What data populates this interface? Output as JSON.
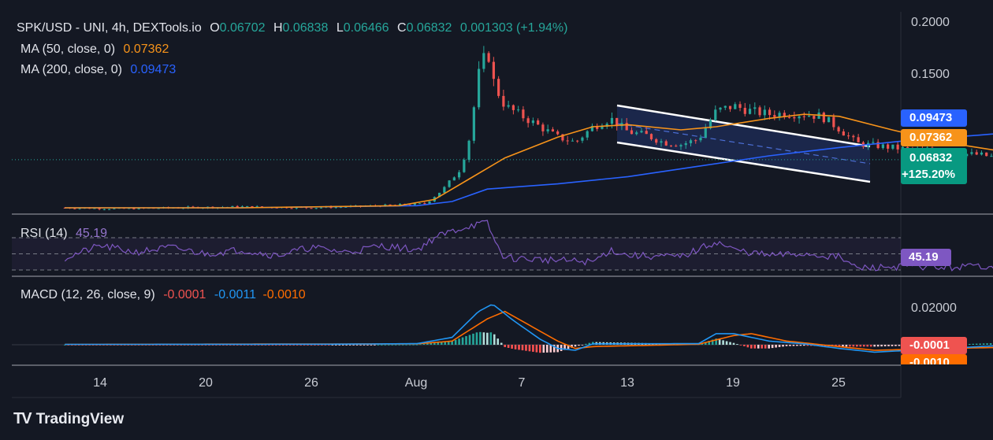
{
  "header": {
    "symbol": "SPK/USD - UNI, 4h, DEXTools.io",
    "open_label": "O",
    "open": "0.06702",
    "high_label": "H",
    "high": "0.06838",
    "low_label": "L",
    "low": "0.06466",
    "close_label": "C",
    "close": "0.06832",
    "change": "0.001303 (+1.94%)"
  },
  "indicators": {
    "ma50": {
      "label": "MA (50, close, 0)",
      "value": "0.07362",
      "color": "#f7931a"
    },
    "ma200": {
      "label": "MA (200, close, 0)",
      "value": "0.09473",
      "color": "#2962ff"
    },
    "rsi": {
      "label": "RSI (14)",
      "value": "45.19",
      "color": "#7e57c2"
    },
    "macd": {
      "label": "MACD (12, 26, close, 9)",
      "hist": "-0.0001",
      "macd": "-0.0011",
      "signal": "-0.0010"
    }
  },
  "price_axis": {
    "ticks": [
      "0.2000",
      "0.1500"
    ],
    "badges": {
      "ma200": "0.09473",
      "ma50": "0.07362",
      "price": "0.06832",
      "pct": "+125.20%"
    }
  },
  "rsi_axis": {
    "badge": "45.19"
  },
  "macd_axis": {
    "ticks": [
      "0.02000"
    ],
    "badge_hist": "-0.0001",
    "badge_signal": "-0.0010"
  },
  "time_axis": {
    "ticks": [
      "14",
      "20",
      "26",
      "Aug",
      "7",
      "13",
      "19",
      "25"
    ]
  },
  "brand": {
    "name": "TradingView",
    "logo_text": "TV"
  },
  "colors": {
    "up": "#26a69a",
    "down": "#ef5350",
    "ma50": "#f7931a",
    "ma200": "#2962ff",
    "rsi": "#7e57c2",
    "macd": "#2196f3",
    "signal": "#ff6d00",
    "channel": "#ffffff"
  },
  "chart_data": [
    {
      "type": "candlestick",
      "title": "SPK/USD - UNI, 4h, DEXTools.io",
      "ylim": [
        0.0,
        0.2
      ],
      "x_ticks": [
        "14",
        "20",
        "26",
        "Aug",
        "7",
        "13",
        "19",
        "25"
      ],
      "close_path": [
        [
          0,
          0.022
        ],
        [
          3,
          0.021
        ],
        [
          6,
          0.022
        ],
        [
          10,
          0.023
        ],
        [
          14,
          0.022
        ],
        [
          18,
          0.024
        ],
        [
          20.5,
          0.026
        ],
        [
          21.5,
          0.04
        ],
        [
          22.5,
          0.06
        ],
        [
          23,
          0.09
        ],
        [
          23.5,
          0.15
        ],
        [
          24,
          0.175
        ],
        [
          24.4,
          0.14
        ],
        [
          25,
          0.12
        ],
        [
          26,
          0.11
        ],
        [
          27,
          0.1
        ],
        [
          28,
          0.09
        ],
        [
          29,
          0.085
        ],
        [
          30,
          0.1
        ],
        [
          31,
          0.108
        ],
        [
          32,
          0.095
        ],
        [
          33,
          0.092
        ],
        [
          34,
          0.085
        ],
        [
          35,
          0.083
        ],
        [
          36,
          0.088
        ],
        [
          37,
          0.115
        ],
        [
          38,
          0.12
        ],
        [
          39,
          0.115
        ],
        [
          40,
          0.112
        ],
        [
          41,
          0.113
        ],
        [
          42,
          0.112
        ],
        [
          43,
          0.11
        ],
        [
          44,
          0.098
        ],
        [
          45,
          0.084
        ],
        [
          46,
          0.082
        ],
        [
          47,
          0.08
        ],
        [
          48,
          0.078
        ],
        [
          49,
          0.078
        ],
        [
          50,
          0.077
        ],
        [
          51,
          0.074
        ],
        [
          52,
          0.073
        ],
        [
          53,
          0.07
        ],
        [
          54,
          0.07
        ],
        [
          54.7,
          0.078
        ],
        [
          55,
          0.072
        ],
        [
          55.5,
          0.068
        ]
      ],
      "last": {
        "open": 0.06702,
        "high": 0.06838,
        "low": 0.06466,
        "close": 0.06832
      }
    },
    {
      "type": "line",
      "series": [
        {
          "name": "MA (50, close, 0)",
          "last": 0.07362,
          "points": [
            [
              0,
              0.022
            ],
            [
              10,
              0.022
            ],
            [
              19,
              0.024
            ],
            [
              21,
              0.03
            ],
            [
              23,
              0.05
            ],
            [
              25,
              0.07
            ],
            [
              28,
              0.09
            ],
            [
              30,
              0.1
            ],
            [
              32,
              0.102
            ],
            [
              35,
              0.097
            ],
            [
              37,
              0.1
            ],
            [
              40,
              0.108
            ],
            [
              42,
              0.112
            ],
            [
              44,
              0.11
            ],
            [
              47,
              0.097
            ],
            [
              50,
              0.085
            ],
            [
              53,
              0.077
            ],
            [
              55.5,
              0.074
            ]
          ]
        },
        {
          "name": "MA (200, close, 0)",
          "last": 0.09473,
          "points": [
            [
              0,
              0.022
            ],
            [
              10,
              0.022
            ],
            [
              20,
              0.024
            ],
            [
              22,
              0.028
            ],
            [
              24,
              0.04
            ],
            [
              28,
              0.045
            ],
            [
              32,
              0.052
            ],
            [
              36,
              0.062
            ],
            [
              40,
              0.072
            ],
            [
              44,
              0.08
            ],
            [
              48,
              0.087
            ],
            [
              52,
              0.092
            ],
            [
              54,
              0.095
            ],
            [
              55.5,
              0.093
            ]
          ]
        }
      ]
    },
    {
      "type": "line",
      "title": "RSI (14)",
      "ylim": [
        0,
        100
      ],
      "series": [
        {
          "name": "RSI (14)",
          "last": 45.19,
          "points": [
            [
              0,
              45
            ],
            [
              2,
              60
            ],
            [
              4,
              52
            ],
            [
              6,
              58
            ],
            [
              8,
              50
            ],
            [
              10,
              55
            ],
            [
              12,
              48
            ],
            [
              14,
              58
            ],
            [
              16,
              52
            ],
            [
              18,
              60
            ],
            [
              20,
              55
            ],
            [
              21,
              70
            ],
            [
              22,
              78
            ],
            [
              23,
              85
            ],
            [
              24,
              88
            ],
            [
              24.5,
              62
            ],
            [
              25,
              45
            ],
            [
              28,
              42
            ],
            [
              30,
              40
            ],
            [
              31,
              55
            ],
            [
              32,
              48
            ],
            [
              35,
              46
            ],
            [
              37,
              65
            ],
            [
              38,
              55
            ],
            [
              40,
              48
            ],
            [
              42,
              50
            ],
            [
              44,
              46
            ],
            [
              45,
              32
            ],
            [
              48,
              35
            ],
            [
              50,
              33
            ],
            [
              52,
              35
            ],
            [
              54,
              36
            ],
            [
              54.5,
              58
            ],
            [
              55,
              40
            ],
            [
              55.5,
              45.19
            ]
          ]
        }
      ],
      "bands": [
        30,
        50,
        70
      ]
    },
    {
      "type": "line",
      "title": "MACD (12, 26, close, 9)",
      "series": [
        {
          "name": "MACD",
          "last": -0.0011,
          "points": [
            [
              0,
              0.0002
            ],
            [
              15,
              0.0003
            ],
            [
              20,
              0.0006
            ],
            [
              22,
              0.004
            ],
            [
              23.5,
              0.018
            ],
            [
              24.3,
              0.022
            ],
            [
              25.5,
              0.013
            ],
            [
              27,
              0.003
            ],
            [
              28,
              -0.002
            ],
            [
              29,
              -0.003
            ],
            [
              30,
              0.0005
            ],
            [
              36,
              0.0006
            ],
            [
              37,
              0.006
            ],
            [
              38,
              0.006
            ],
            [
              40,
              0.002
            ],
            [
              42,
              0.0005
            ],
            [
              44,
              -0.002
            ],
            [
              46,
              -0.004
            ],
            [
              50,
              -0.002
            ],
            [
              54,
              0.0
            ],
            [
              55.5,
              -0.0011
            ]
          ]
        },
        {
          "name": "Signal",
          "last": -0.001,
          "points": [
            [
              0,
              0.0002
            ],
            [
              20,
              0.0005
            ],
            [
              22,
              0.002
            ],
            [
              24,
              0.014
            ],
            [
              25,
              0.018
            ],
            [
              26.5,
              0.01
            ],
            [
              28,
              0.002
            ],
            [
              29,
              -0.002
            ],
            [
              30,
              -0.001
            ],
            [
              36,
              0.0003
            ],
            [
              38,
              0.005
            ],
            [
              39,
              0.006
            ],
            [
              41,
              0.002
            ],
            [
              44,
              -0.001
            ],
            [
              46,
              -0.003
            ],
            [
              50,
              -0.002
            ],
            [
              55.5,
              -0.001
            ]
          ]
        }
      ],
      "histogram_last": -0.0001
    }
  ]
}
